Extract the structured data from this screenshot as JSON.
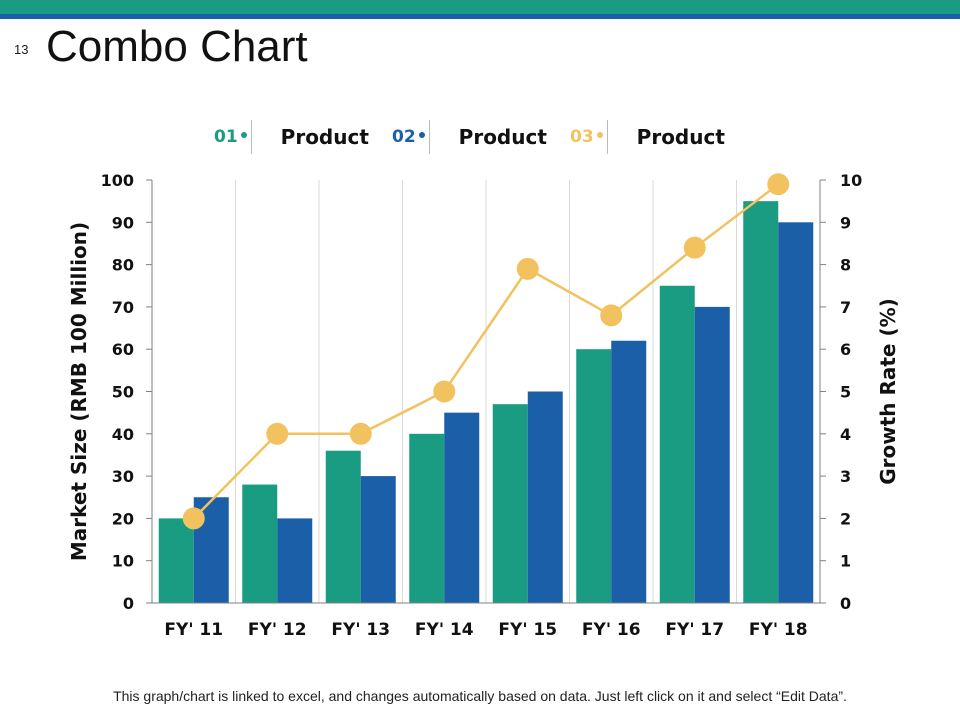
{
  "slide": {
    "number": "13",
    "title": "Combo Chart"
  },
  "legend": [
    {
      "num": "01",
      "label": "Product",
      "color": "#1a9c82"
    },
    {
      "num": "02",
      "label": "Product",
      "color": "#1a5fa8"
    },
    {
      "num": "03",
      "label": "Product",
      "color": "#f2c25f"
    }
  ],
  "chart_data": {
    "type": "bar",
    "title": "",
    "categories": [
      "FY' 11",
      "FY' 12",
      "FY' 13",
      "FY' 14",
      "FY' 15",
      "FY' 16",
      "FY' 17",
      "FY' 18"
    ],
    "series": [
      {
        "name": "Product 01",
        "kind": "bar",
        "axis": "left",
        "color": "#1a9c82",
        "values": [
          20,
          28,
          36,
          40,
          47,
          60,
          75,
          95
        ]
      },
      {
        "name": "Product 02",
        "kind": "bar",
        "axis": "left",
        "color": "#1a5fa8",
        "values": [
          25,
          20,
          30,
          45,
          50,
          62,
          70,
          90
        ]
      },
      {
        "name": "Product 03",
        "kind": "line",
        "axis": "right",
        "color": "#f2c25f",
        "values": [
          2,
          4,
          4,
          5,
          7.9,
          6.8,
          8.4,
          9.9
        ]
      }
    ],
    "ylabel": "Market Size (RMB 100 Million)",
    "y2label": "Growth Rate (%)",
    "ylim": [
      0,
      100
    ],
    "y2lim": [
      0,
      10
    ],
    "yticks": [
      "0",
      "10",
      "20",
      "30",
      "40",
      "50",
      "60",
      "70",
      "80",
      "90",
      "100"
    ],
    "y2ticks": [
      "0",
      "1",
      "2",
      "3",
      "4",
      "5",
      "6",
      "7",
      "8",
      "9",
      "10"
    ],
    "grid": "vertical"
  },
  "footer": "This graph/chart is linked to excel, and changes automatically based on data. Just left click on it and select “Edit Data”."
}
